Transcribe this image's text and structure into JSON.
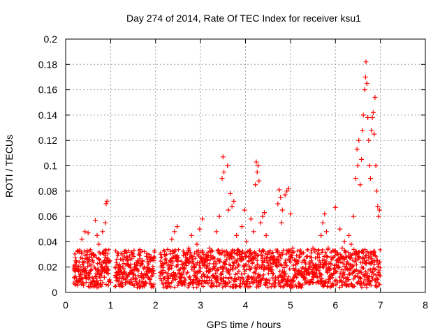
{
  "chart_data": {
    "type": "scatter",
    "title": "Day 274 of 2014, Rate Of TEC Index for receiver ksu1",
    "xlabel": "GPS time / hours",
    "ylabel": "ROTI / TECUs",
    "xlim": [
      0,
      8
    ],
    "ylim": [
      0,
      0.2
    ],
    "x_ticks": [
      0,
      1,
      2,
      3,
      4,
      5,
      6,
      7,
      8
    ],
    "x_tick_labels": [
      "0",
      "1",
      "2",
      "3",
      "4",
      "5",
      "6",
      "7",
      "8"
    ],
    "y_ticks": [
      0,
      0.02,
      0.04,
      0.06,
      0.08,
      0.1,
      0.12,
      0.14,
      0.16,
      0.18,
      0.2
    ],
    "y_tick_labels": [
      "0",
      "0.02",
      "0.04",
      "0.06",
      "0.08",
      "0.1",
      "0.12",
      "0.14",
      "0.16",
      "0.18",
      "0.2"
    ],
    "grid": true,
    "marker": "+",
    "color": "#ff0000",
    "series": [
      {
        "name": "ksu1",
        "points": [
          [
            0.2,
            0.012
          ],
          [
            0.23,
            0.025
          ],
          [
            0.26,
            0.018
          ],
          [
            0.3,
            0.032
          ],
          [
            0.33,
            0.01
          ],
          [
            0.36,
            0.042
          ],
          [
            0.4,
            0.02
          ],
          [
            0.43,
            0.048
          ],
          [
            0.46,
            0.015
          ],
          [
            0.5,
            0.047
          ],
          [
            0.53,
            0.028
          ],
          [
            0.56,
            0.008
          ],
          [
            0.62,
            0.03
          ],
          [
            0.66,
            0.057
          ],
          [
            0.7,
            0.045
          ],
          [
            0.74,
            0.038
          ],
          [
            0.78,
            0.02
          ],
          [
            0.82,
            0.048
          ],
          [
            0.86,
            0.012
          ],
          [
            0.88,
            0.055
          ],
          [
            0.9,
            0.07
          ],
          [
            0.92,
            0.072
          ],
          [
            0.94,
            0.015
          ],
          [
            0.98,
            0.025
          ],
          [
            1.0,
            0.008
          ],
          [
            1.12,
            0.012
          ],
          [
            1.2,
            0.022
          ],
          [
            1.28,
            0.015
          ],
          [
            1.36,
            0.028
          ],
          [
            1.45,
            0.01
          ],
          [
            1.52,
            0.018
          ],
          [
            1.6,
            0.025
          ],
          [
            1.68,
            0.012
          ],
          [
            1.75,
            0.005
          ],
          [
            1.82,
            0.02
          ],
          [
            1.9,
            0.028
          ],
          [
            1.96,
            0.015
          ],
          [
            2.12,
            0.02
          ],
          [
            2.2,
            0.03
          ],
          [
            2.28,
            0.015
          ],
          [
            2.36,
            0.042
          ],
          [
            2.42,
            0.048
          ],
          [
            2.48,
            0.052
          ],
          [
            2.5,
            0.025
          ],
          [
            2.58,
            0.012
          ],
          [
            2.66,
            0.03
          ],
          [
            2.74,
            0.035
          ],
          [
            2.8,
            0.045
          ],
          [
            2.86,
            0.02
          ],
          [
            2.92,
            0.038
          ],
          [
            2.98,
            0.05
          ],
          [
            3.04,
            0.058
          ],
          [
            3.08,
            0.022
          ],
          [
            3.14,
            0.012
          ],
          [
            3.2,
            0.035
          ],
          [
            3.28,
            0.028
          ],
          [
            3.35,
            0.048
          ],
          [
            3.42,
            0.06
          ],
          [
            3.48,
            0.09
          ],
          [
            3.5,
            0.107
          ],
          [
            3.52,
            0.095
          ],
          [
            3.6,
            0.1
          ],
          [
            3.62,
            0.065
          ],
          [
            3.66,
            0.078
          ],
          [
            3.7,
            0.068
          ],
          [
            3.74,
            0.072
          ],
          [
            3.8,
            0.045
          ],
          [
            3.86,
            0.03
          ],
          [
            3.92,
            0.052
          ],
          [
            3.98,
            0.065
          ],
          [
            4.02,
            0.04
          ],
          [
            4.08,
            0.025
          ],
          [
            4.12,
            0.058
          ],
          [
            4.18,
            0.048
          ],
          [
            4.22,
            0.085
          ],
          [
            4.24,
            0.103
          ],
          [
            4.26,
            0.095
          ],
          [
            4.28,
            0.1
          ],
          [
            4.3,
            0.088
          ],
          [
            4.34,
            0.055
          ],
          [
            4.38,
            0.06
          ],
          [
            4.42,
            0.063
          ],
          [
            4.46,
            0.045
          ],
          [
            4.5,
            0.03
          ],
          [
            4.55,
            0.02
          ],
          [
            4.6,
            0.015
          ],
          [
            4.65,
            0.025
          ],
          [
            4.72,
            0.07
          ],
          [
            4.75,
            0.081
          ],
          [
            4.78,
            0.075
          ],
          [
            4.8,
            0.055
          ],
          [
            4.82,
            0.065
          ],
          [
            4.88,
            0.077
          ],
          [
            4.92,
            0.08
          ],
          [
            4.96,
            0.082
          ],
          [
            5.0,
            0.062
          ],
          [
            5.05,
            0.035
          ],
          [
            5.12,
            0.022
          ],
          [
            5.2,
            0.015
          ],
          [
            5.3,
            0.025
          ],
          [
            5.4,
            0.018
          ],
          [
            5.5,
            0.035
          ],
          [
            5.6,
            0.028
          ],
          [
            5.68,
            0.045
          ],
          [
            5.72,
            0.055
          ],
          [
            5.76,
            0.062
          ],
          [
            5.8,
            0.048
          ],
          [
            5.84,
            0.035
          ],
          [
            5.9,
            0.022
          ],
          [
            5.96,
            0.015
          ],
          [
            6.0,
            0.067
          ],
          [
            6.05,
            0.025
          ],
          [
            6.1,
            0.05
          ],
          [
            6.15,
            0.035
          ],
          [
            6.2,
            0.04
          ],
          [
            6.25,
            0.028
          ],
          [
            6.3,
            0.045
          ],
          [
            6.35,
            0.038
          ],
          [
            6.4,
            0.06
          ],
          [
            6.45,
            0.09
          ],
          [
            6.48,
            0.113
          ],
          [
            6.5,
            0.1
          ],
          [
            6.52,
            0.12
          ],
          [
            6.55,
            0.085
          ],
          [
            6.58,
            0.105
          ],
          [
            6.6,
            0.128
          ],
          [
            6.62,
            0.14
          ],
          [
            6.65,
            0.16
          ],
          [
            6.67,
            0.17
          ],
          [
            6.68,
            0.182
          ],
          [
            6.7,
            0.165
          ],
          [
            6.72,
            0.138
          ],
          [
            6.74,
            0.12
          ],
          [
            6.76,
            0.1
          ],
          [
            6.78,
            0.09
          ],
          [
            6.8,
            0.128
          ],
          [
            6.82,
            0.138
          ],
          [
            6.84,
            0.142
          ],
          [
            6.86,
            0.125
          ],
          [
            6.88,
            0.154
          ],
          [
            6.9,
            0.1
          ],
          [
            6.92,
            0.08
          ],
          [
            6.94,
            0.068
          ],
          [
            6.96,
            0.06
          ],
          [
            6.98,
            0.065
          ]
        ]
      }
    ]
  }
}
